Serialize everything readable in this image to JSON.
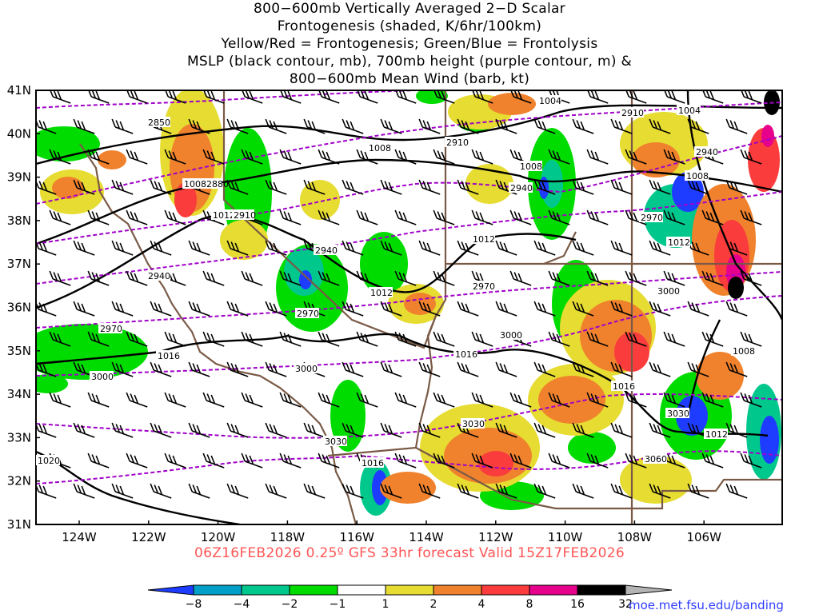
{
  "header": {
    "lines": [
      "800−600mb Vertically Averaged 2−D Scalar",
      "Frontogenesis (shaded, K/6hr/100km)",
      "Yellow/Red = Frontogenesis;  Green/Blue = Frontolysis",
      "MSLP (black contour, mb), 700mb height (purple contour, m) &",
      "800−600mb Mean Wind (barb, kt)"
    ]
  },
  "map": {
    "lat_labels": [
      "41N",
      "40N",
      "39N",
      "38N",
      "37N",
      "36N",
      "35N",
      "34N",
      "33N",
      "32N",
      "31N"
    ],
    "lon_labels": [
      "124W",
      "122W",
      "120W",
      "118W",
      "116W",
      "114W",
      "112W",
      "110W",
      "108W",
      "106W"
    ],
    "pressure_contour_labels": [
      "1004",
      "1008",
      "1012",
      "1016",
      "1020"
    ],
    "height_contour_labels": [
      "2850",
      "2880",
      "2910",
      "2940",
      "2970",
      "3000",
      "3030",
      "3060"
    ],
    "colors": {
      "frontogenesis_weak": "#e6dc32",
      "frontogenesis_moderate": "#f0822d",
      "frontogenesis_strong": "#fa3c3c",
      "frontolysis_weak": "#00dc00",
      "frontolysis_moderate": "#00c88c",
      "frontolysis_strong": "#1e3cff",
      "mslp_contour": "#000000",
      "height_contour": "#a000c8",
      "borders": "#7a5a46"
    }
  },
  "run_info": "06Z16FEB2026  0.25º  GFS  33hr  forecast  Valid  15Z17FEB2026",
  "colorbar": {
    "labels": [
      "−8",
      "−4",
      "−2",
      "−1",
      "1",
      "2",
      "4",
      "8",
      "16",
      "32"
    ],
    "colors": [
      "#1e3cff",
      "#00a0c8",
      "#00c88c",
      "#00dc00",
      "#ffffff",
      "#e6dc32",
      "#f0822d",
      "#fa3c3c",
      "#e6008c",
      "#000000",
      "#b4b4b4"
    ]
  },
  "credit": "moe.met.fsu.edu/banding"
}
